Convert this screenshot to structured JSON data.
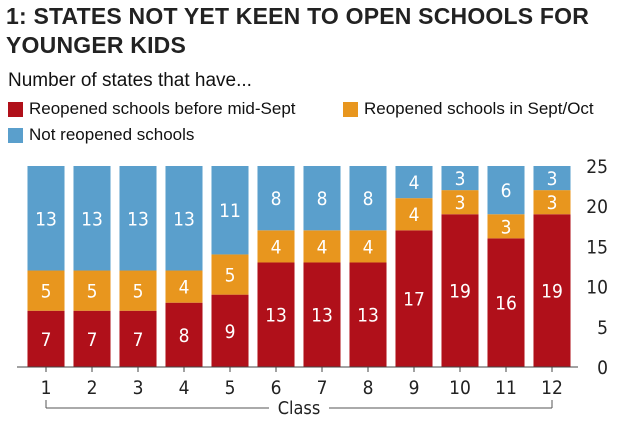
{
  "title": "1: STATES NOT YET KEEN TO OPEN SCHOOLS FOR YOUNGER KIDS",
  "subtitle": "Number of states that have...",
  "colors": {
    "red": "#b0101a",
    "orange": "#e8961e",
    "blue": "#5a9fcc"
  },
  "chart_data": {
    "type": "bar",
    "stacked": true,
    "xlabel": "Class",
    "ylabel": "",
    "categories": [
      "1",
      "2",
      "3",
      "4",
      "5",
      "6",
      "7",
      "8",
      "9",
      "10",
      "11",
      "12"
    ],
    "series": [
      {
        "name": "Reopened schools before mid-Sept",
        "color": "#b0101a",
        "values": [
          7,
          7,
          7,
          8,
          9,
          13,
          13,
          13,
          17,
          19,
          16,
          19
        ]
      },
      {
        "name": "Reopened schools in Sept/Oct",
        "color": "#e8961e",
        "values": [
          5,
          5,
          5,
          4,
          5,
          4,
          4,
          4,
          4,
          3,
          3,
          3
        ]
      },
      {
        "name": "Not reopened schools",
        "color": "#5a9fcc",
        "values": [
          13,
          13,
          13,
          13,
          11,
          8,
          8,
          8,
          4,
          3,
          6,
          3
        ]
      }
    ],
    "ylim": [
      0,
      25
    ],
    "yticks": [
      0,
      5,
      10,
      15,
      20,
      25
    ],
    "yaxis_position": "right",
    "grid": true,
    "legend_position": "top-left"
  }
}
